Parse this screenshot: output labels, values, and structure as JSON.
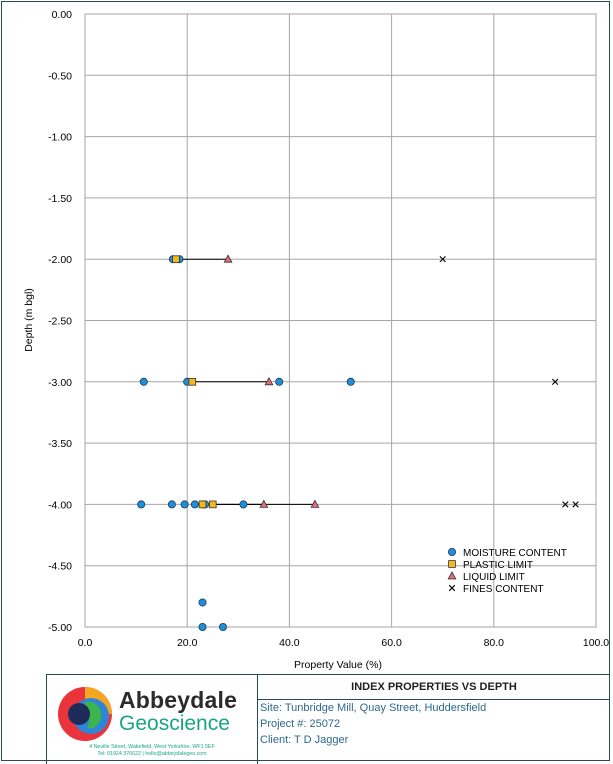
{
  "chart_data": {
    "type": "scatter",
    "xlabel": "Property Value (%)",
    "ylabel": "Depth (m bgl)",
    "xlim": [
      0,
      100
    ],
    "ylim": [
      -5.0,
      0.0
    ],
    "x_ticks": [
      "0.0",
      "20.0",
      "40.0",
      "60.0",
      "80.0",
      "100.0"
    ],
    "y_ticks": [
      "0.00",
      "-0.50",
      "-1.00",
      "-1.50",
      "-2.00",
      "-2.50",
      "-3.00",
      "-3.50",
      "-4.00",
      "-4.50",
      "-5.00"
    ],
    "grid": true,
    "legend_position": "bottom-right",
    "series": [
      {
        "name": "MOISTURE CONTENT",
        "marker": "circle",
        "color": "#1f8fd8",
        "points": [
          [
            17.2,
            -2.0
          ],
          [
            18.5,
            -2.0
          ],
          [
            11.5,
            -3.0
          ],
          [
            20.0,
            -3.0
          ],
          [
            38.0,
            -3.0
          ],
          [
            52.0,
            -3.0
          ],
          [
            11.0,
            -4.0
          ],
          [
            17.0,
            -4.0
          ],
          [
            19.5,
            -4.0
          ],
          [
            21.5,
            -4.0
          ],
          [
            23.0,
            -4.0
          ],
          [
            23.5,
            -4.0
          ],
          [
            31.0,
            -4.0
          ],
          [
            23.0,
            -4.8
          ],
          [
            23.0,
            -5.0
          ],
          [
            27.0,
            -5.0
          ]
        ]
      },
      {
        "name": "PLASTIC LIMIT",
        "marker": "square",
        "color": "#f4b81b",
        "points": [
          [
            17.8,
            -2.0
          ],
          [
            21.0,
            -3.0
          ],
          [
            23.0,
            -4.0
          ],
          [
            25.0,
            -4.0
          ]
        ]
      },
      {
        "name": "LIQUID LIMIT",
        "marker": "triangle",
        "color": "#e46a7e",
        "points": [
          [
            28.0,
            -2.0
          ],
          [
            36.0,
            -3.0
          ],
          [
            35.0,
            -4.0
          ],
          [
            45.0,
            -4.0
          ]
        ]
      },
      {
        "name": "FINES CONTENT",
        "marker": "x",
        "color": "#000000",
        "points": [
          [
            70.0,
            -2.0
          ],
          [
            92.0,
            -3.0
          ],
          [
            94.0,
            -4.0
          ],
          [
            96.0,
            -4.0
          ]
        ]
      }
    ],
    "range_lines": [
      {
        "from": 17.8,
        "to": 28.0,
        "y": -2.0
      },
      {
        "from": 21.0,
        "to": 36.0,
        "y": -3.0
      },
      {
        "from": 23.0,
        "to": 35.0,
        "y": -4.0
      },
      {
        "from": 25.0,
        "to": 45.0,
        "y": -4.0
      }
    ]
  },
  "footer": {
    "company_name": "Abbeydale",
    "company_sub": "Geoscience",
    "address": "4 Neville Street, Wakefield, West Yorkshire, WF1 5EF",
    "contact": "Tel: 01924 376622 | hello@abbeydalegeo.com",
    "chart_title": "INDEX PROPERTIES VS DEPTH",
    "site": "Site: Tunbridge Mill, Quay Street, Huddersfield",
    "project": "Project #: 25072",
    "client": "Client: T D Jagger"
  },
  "colors": {
    "frame": "#2a4a55",
    "grid": "#a6a6a6",
    "accent_green": "#1aa487",
    "info_text": "#2b6a8a"
  }
}
